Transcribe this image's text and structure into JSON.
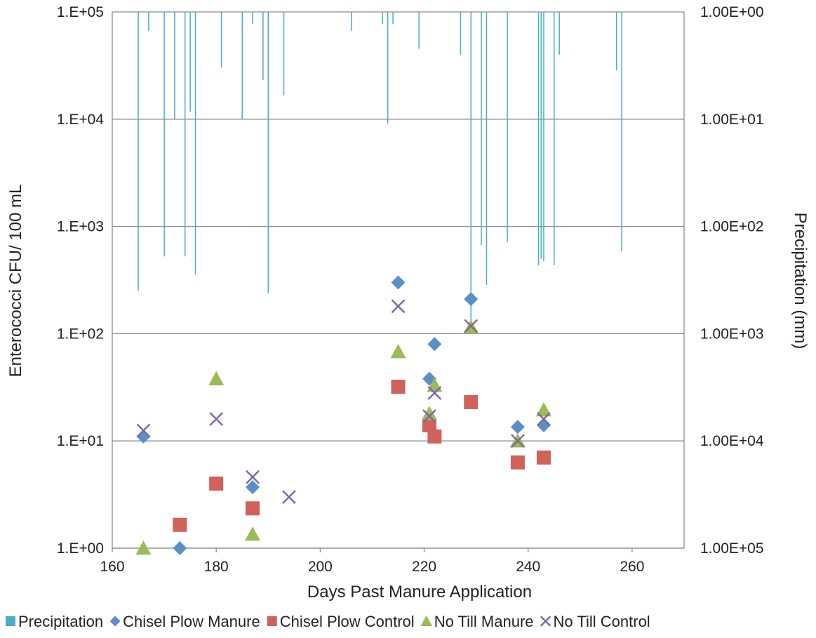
{
  "chart_data": {
    "type": "scatter",
    "title": "",
    "xlabel": "Days Past Manure Application",
    "ylabel": "Enterococci CFU/ 100 mL",
    "y2label": "Precipitation (mm)",
    "xlim": [
      160,
      270
    ],
    "x_ticks": [
      160,
      180,
      200,
      220,
      240,
      260
    ],
    "x_tick_labels": [
      "160",
      "180",
      "200",
      "220",
      "240",
      "260"
    ],
    "ylim": [
      1,
      100000
    ],
    "y_scale": "log",
    "y_ticks": [
      1,
      10,
      100,
      1000,
      10000,
      100000
    ],
    "y_tick_labels": [
      "1.E+00",
      "1.E+01",
      "1.E+02",
      "1.E+03",
      "1.E+04",
      "1.E+05"
    ],
    "y2lim": [
      100000,
      1
    ],
    "y2_scale": "log",
    "y2_reversed": true,
    "y2_ticks": [
      1,
      10,
      100,
      1000,
      10000,
      100000
    ],
    "y2_tick_labels": [
      "1.00E+00",
      "1.00E+01",
      "1.00E+02",
      "1.00E+03",
      "1.00E+04",
      "1.00E+05"
    ],
    "grid": "horizontal",
    "legend_position": "bottom",
    "series": [
      {
        "name": "Precipitation",
        "type": "bar",
        "axis": "y2",
        "color": "#4bacc6",
        "marker": "square",
        "points": [
          [
            165,
            400
          ],
          [
            167,
            1.5
          ],
          [
            170,
            190
          ],
          [
            172,
            10
          ],
          [
            174,
            190
          ],
          [
            175,
            8.5
          ],
          [
            176,
            280
          ],
          [
            181,
            3.3
          ],
          [
            185,
            10
          ],
          [
            187,
            1.3
          ],
          [
            189,
            4.3
          ],
          [
            190,
            420
          ],
          [
            193,
            6
          ],
          [
            198,
            1
          ],
          [
            199,
            1
          ],
          [
            206,
            1.5
          ],
          [
            212,
            1.3
          ],
          [
            213,
            11
          ],
          [
            214,
            1.3
          ],
          [
            216,
            1
          ],
          [
            219,
            2.2
          ],
          [
            227,
            2.5
          ],
          [
            229,
            900
          ],
          [
            231,
            150
          ],
          [
            232,
            350
          ],
          [
            236,
            140
          ],
          [
            241,
            1
          ],
          [
            242,
            230
          ],
          [
            242.5,
            200
          ],
          [
            243,
            210
          ],
          [
            245,
            230
          ],
          [
            246,
            2.5
          ],
          [
            257,
            3.5
          ],
          [
            258,
            170
          ]
        ]
      },
      {
        "name": "Chisel Plow Manure",
        "type": "scatter",
        "axis": "y",
        "color": "#5a8fc8",
        "marker": "diamond",
        "points": [
          [
            166,
            11
          ],
          [
            173,
            1
          ],
          [
            187,
            3.7
          ],
          [
            215,
            300
          ],
          [
            221,
            38
          ],
          [
            222,
            80
          ],
          [
            229,
            210
          ],
          [
            238,
            13.5
          ],
          [
            243,
            14
          ]
        ]
      },
      {
        "name": "Chisel Plow Control",
        "type": "scatter",
        "axis": "y",
        "color": "#d0625b",
        "marker": "square",
        "points": [
          [
            173,
            1.65
          ],
          [
            180,
            4
          ],
          [
            187,
            2.35
          ],
          [
            215,
            32
          ],
          [
            221,
            14
          ],
          [
            222,
            11
          ],
          [
            229,
            23
          ],
          [
            238,
            6.3
          ],
          [
            243,
            7
          ]
        ]
      },
      {
        "name": "No Till Manure",
        "type": "scatter",
        "axis": "y",
        "color": "#9bbb59",
        "marker": "triangle",
        "points": [
          [
            166,
            1
          ],
          [
            180,
            38
          ],
          [
            187,
            1.35
          ],
          [
            215,
            68
          ],
          [
            221,
            18
          ],
          [
            222,
            33
          ],
          [
            229,
            115
          ],
          [
            238,
            10
          ],
          [
            243,
            19.5
          ]
        ]
      },
      {
        "name": "No Till Control",
        "type": "scatter",
        "axis": "y",
        "color": "#8064a2",
        "marker": "x",
        "points": [
          [
            166,
            12.5
          ],
          [
            180,
            16
          ],
          [
            187,
            4.6
          ],
          [
            194,
            3
          ],
          [
            215,
            180
          ],
          [
            221,
            17
          ],
          [
            222,
            28
          ],
          [
            229,
            118
          ],
          [
            238,
            10
          ],
          [
            243,
            16
          ]
        ]
      }
    ]
  }
}
